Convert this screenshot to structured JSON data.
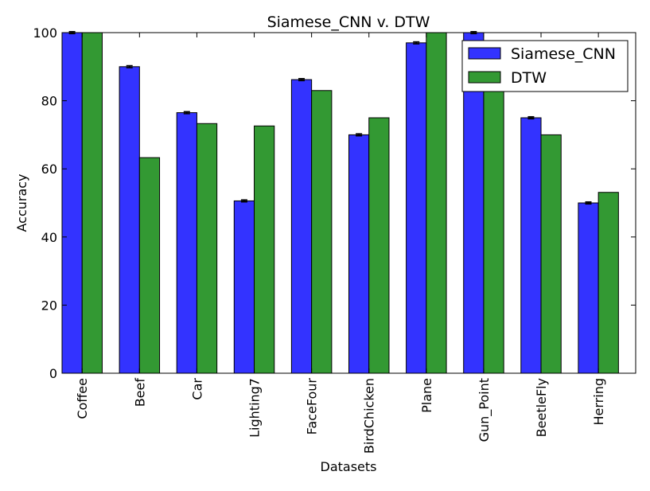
{
  "chart_data": {
    "type": "bar",
    "title": "Siamese_CNN v. DTW",
    "xlabel": "Datasets",
    "ylabel": "Accuracy",
    "ylim": [
      0,
      100
    ],
    "yticks": [
      0,
      20,
      40,
      60,
      80,
      100
    ],
    "grid": false,
    "legend_position": "top-right",
    "categories": [
      "Coffee",
      "Beef",
      "Car",
      "Lighting7",
      "FaceFour",
      "BirdChicken",
      "Plane",
      "Gun_Point",
      "BeetleFly",
      "Herring"
    ],
    "series": [
      {
        "name": "Siamese_CNN",
        "color": "#3333ff",
        "values": [
          100,
          90,
          76.5,
          50.6,
          86.2,
          70,
          97,
          100,
          75,
          50
        ],
        "error": [
          0.3,
          0.3,
          0.3,
          0.3,
          0.3,
          0.3,
          0.3,
          0.3,
          0.3,
          0.3
        ]
      },
      {
        "name": "DTW",
        "color": "#339933",
        "values": [
          100,
          63.3,
          73.3,
          72.6,
          83,
          75,
          100,
          90.7,
          70,
          53.1
        ]
      }
    ]
  }
}
